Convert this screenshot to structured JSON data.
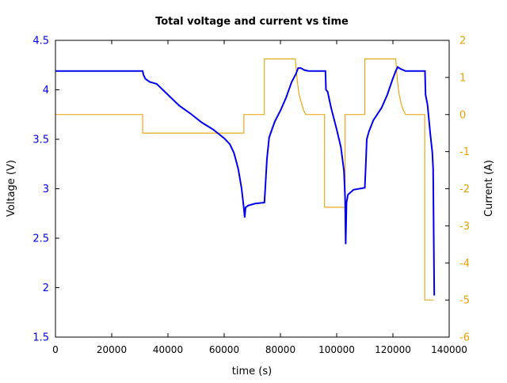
{
  "chart_data": {
    "type": "line",
    "title": "Total voltage and current vs time",
    "xlabel": "time (s)",
    "ylabel_left": "Voltage (V)",
    "ylabel_right": "Current (A)",
    "xlim": [
      0,
      140000
    ],
    "ylim_left": [
      1.5,
      4.5
    ],
    "ylim_right": [
      -6,
      2
    ],
    "x_ticks": [
      0,
      20000,
      40000,
      60000,
      80000,
      100000,
      120000,
      140000
    ],
    "y_ticks_left": [
      "1.5",
      "2",
      "2.5",
      "3",
      "3.5",
      "4",
      "4.5"
    ],
    "y_ticks_right": [
      2,
      1,
      0,
      -1,
      -2,
      -3,
      -4,
      -5,
      -6
    ],
    "grid": false,
    "colors": {
      "voltage": "#0000ee",
      "current": "#e8a000",
      "left_axis": "#0000ee",
      "right_axis": "#e8a000"
    },
    "series": [
      {
        "axis": "left",
        "x": [
          0,
          31000,
          31300,
          32000,
          33500,
          36000,
          40000,
          44000,
          48000,
          52000,
          56000,
          60000,
          62000,
          63500,
          65000,
          66200,
          67000,
          67300,
          67600,
          68500,
          71000,
          74300,
          74600,
          75200,
          76000,
          78000,
          80000,
          82000,
          84000,
          85500,
          86300,
          87200,
          88500,
          90000,
          96000,
          96200,
          96800,
          98000,
          100000,
          101500,
          102600,
          103000,
          103200,
          103500,
          104000,
          106000,
          110000,
          110300,
          110700,
          111500,
          113000,
          116000,
          118000,
          119800,
          121000,
          121700,
          122800,
          124500,
          131400,
          131600,
          132300,
          133300,
          134000,
          134300,
          134700
        ],
        "y": [
          4.19,
          4.19,
          4.15,
          4.11,
          4.08,
          4.06,
          3.95,
          3.84,
          3.76,
          3.67,
          3.6,
          3.51,
          3.45,
          3.36,
          3.2,
          3.0,
          2.8,
          2.71,
          2.81,
          2.83,
          2.85,
          2.86,
          3.0,
          3.3,
          3.52,
          3.68,
          3.79,
          3.92,
          4.08,
          4.16,
          4.22,
          4.22,
          4.2,
          4.19,
          4.19,
          4.0,
          3.98,
          3.82,
          3.6,
          3.42,
          3.18,
          2.9,
          2.44,
          2.86,
          2.94,
          2.99,
          3.01,
          3.2,
          3.5,
          3.58,
          3.69,
          3.82,
          3.95,
          4.1,
          4.19,
          4.23,
          4.21,
          4.19,
          4.19,
          3.95,
          3.85,
          3.55,
          3.37,
          3.2,
          1.92
        ]
      },
      {
        "axis": "right",
        "x": [
          0,
          31000,
          31000,
          67000,
          67000,
          74300,
          74300,
          85300,
          85500,
          86000,
          86600,
          87500,
          88200,
          89000,
          95700,
          95700,
          103000,
          103000,
          110000,
          110000,
          121000,
          121200,
          121600,
          122200,
          122900,
          123700,
          124500,
          131300,
          131300,
          134500
        ],
        "y": [
          0,
          0,
          -0.5,
          -0.5,
          0,
          0,
          1.5,
          1.5,
          1.3,
          0.9,
          0.55,
          0.3,
          0.12,
          0,
          0,
          -2.5,
          -2.5,
          0,
          0,
          1.5,
          1.5,
          1.3,
          0.9,
          0.55,
          0.3,
          0.12,
          0,
          0,
          -5,
          -5
        ]
      }
    ]
  }
}
